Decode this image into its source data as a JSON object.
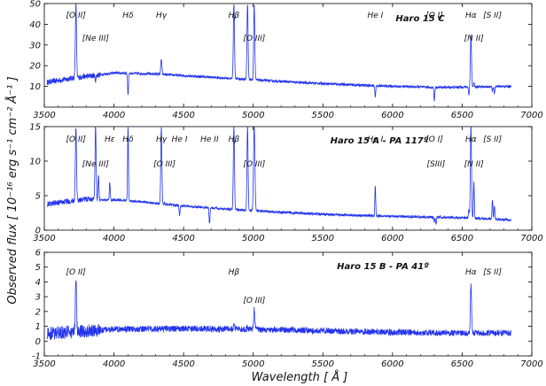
{
  "chart_data": {
    "type": "line",
    "xlabel": "Wavelength [ Å ]",
    "ylabel": "Observed flux [ 10⁻¹⁶ erg s⁻¹ cm⁻² Å⁻¹ ]",
    "xlim": [
      3500,
      7000
    ],
    "x_ticks": [
      3500,
      4000,
      4500,
      5000,
      5500,
      6000,
      6500,
      7000
    ],
    "series_color": "#2233ee",
    "panels": [
      {
        "title": "Haro 15 C",
        "ylim": [
          0,
          50
        ],
        "y_ticks": [
          10,
          20,
          30,
          40,
          50
        ],
        "continuum": [
          [
            3520,
            12
          ],
          [
            3700,
            14
          ],
          [
            4000,
            16.5
          ],
          [
            4300,
            16
          ],
          [
            4800,
            14
          ],
          [
            5300,
            12
          ],
          [
            5800,
            10.5
          ],
          [
            6300,
            9.5
          ],
          [
            6850,
            10
          ]
        ],
        "lines": [
          {
            "x": 3727,
            "peak": 50,
            "w": 4
          },
          {
            "x": 3868,
            "peak": 13,
            "w": 4
          },
          {
            "x": 4101,
            "peak": 6,
            "w": 3
          },
          {
            "x": 4340,
            "peak": 23,
            "w": 4
          },
          {
            "x": 4861,
            "peak": 50,
            "w": 4
          },
          {
            "x": 4959,
            "peak": 50,
            "w": 4
          },
          {
            "x": 5007,
            "peak": 50,
            "w": 4
          },
          {
            "x": 5876,
            "peak": 5,
            "w": 3
          },
          {
            "x": 6300,
            "peak": 3,
            "w": 3
          },
          {
            "x": 6548,
            "peak": 6,
            "w": 3
          },
          {
            "x": 6563,
            "peak": 35,
            "w": 4
          },
          {
            "x": 6584,
            "peak": 12,
            "w": 3
          },
          {
            "x": 6717,
            "peak": 8,
            "w": 3
          },
          {
            "x": 6731,
            "peak": 6,
            "w": 3
          }
        ],
        "labels": [
          {
            "text": "[O II]",
            "x": 3727
          },
          {
            "text": "[Ne III]",
            "x": 3868
          },
          {
            "text": "Hδ",
            "x": 4101
          },
          {
            "text": "Hγ",
            "x": 4340
          },
          {
            "text": "Hβ",
            "x": 4861
          },
          {
            "text": "[O III]",
            "x": 5007
          },
          {
            "text": "He I",
            "x": 5876
          },
          {
            "text": "[O I]",
            "x": 6300
          },
          {
            "text": "Hα",
            "x": 6563
          },
          {
            "text": "[N II]",
            "x": 6584
          },
          {
            "text": "[S II]",
            "x": 6717
          }
        ]
      },
      {
        "title": "Haro 15 A - PA 117º",
        "ylim": [
          0,
          15
        ],
        "y_ticks": [
          0,
          5,
          10,
          15
        ],
        "continuum": [
          [
            3520,
            3.8
          ],
          [
            3800,
            4.5
          ],
          [
            4100,
            4.3
          ],
          [
            4500,
            3.5
          ],
          [
            5000,
            2.8
          ],
          [
            5500,
            2.3
          ],
          [
            6000,
            2.0
          ],
          [
            6500,
            1.8
          ],
          [
            6850,
            1.5
          ]
        ],
        "lines": [
          {
            "x": 3727,
            "peak": 15,
            "w": 4
          },
          {
            "x": 3868,
            "peak": 15,
            "w": 4
          },
          {
            "x": 3889,
            "peak": 8,
            "w": 3
          },
          {
            "x": 3970,
            "peak": 7,
            "w": 3
          },
          {
            "x": 4101,
            "peak": 15,
            "w": 3
          },
          {
            "x": 4340,
            "peak": 15,
            "w": 4
          },
          {
            "x": 4363,
            "peak": 4,
            "w": 3
          },
          {
            "x": 4471,
            "peak": 2,
            "w": 3
          },
          {
            "x": 4686,
            "peak": 0.8,
            "w": 3
          },
          {
            "x": 4861,
            "peak": 15,
            "w": 4
          },
          {
            "x": 4959,
            "peak": 15,
            "w": 4
          },
          {
            "x": 5007,
            "peak": 15,
            "w": 5
          },
          {
            "x": 5876,
            "peak": 6.5,
            "w": 3
          },
          {
            "x": 6300,
            "peak": 1.2,
            "w": 3
          },
          {
            "x": 6312,
            "peak": 0.8,
            "w": 3
          },
          {
            "x": 6548,
            "peak": 3,
            "w": 3
          },
          {
            "x": 6563,
            "peak": 15,
            "w": 4
          },
          {
            "x": 6584,
            "peak": 7,
            "w": 3
          },
          {
            "x": 6717,
            "peak": 4.5,
            "w": 3
          },
          {
            "x": 6731,
            "peak": 3.5,
            "w": 3
          }
        ],
        "labels": [
          {
            "text": "[O II]",
            "x": 3727
          },
          {
            "text": "[Ne III]",
            "x": 3868
          },
          {
            "text": "Hε",
            "x": 3970
          },
          {
            "text": "Hδ",
            "x": 4101
          },
          {
            "text": "Hγ",
            "x": 4340
          },
          {
            "text": "[O III]",
            "x": 4363
          },
          {
            "text": "He I",
            "x": 4471
          },
          {
            "text": "He II",
            "x": 4686
          },
          {
            "text": "Hβ",
            "x": 4861
          },
          {
            "text": "[O III]",
            "x": 5007
          },
          {
            "text": "He I",
            "x": 5876
          },
          {
            "text": "[O I]",
            "x": 6300
          },
          {
            "text": "[SIII]",
            "x": 6312
          },
          {
            "text": "Hα",
            "x": 6563
          },
          {
            "text": "[N II]",
            "x": 6584
          },
          {
            "text": "[S II]",
            "x": 6717
          }
        ]
      },
      {
        "title": "Haro 15 B - PA 41º",
        "ylim": [
          -1,
          6
        ],
        "y_ticks": [
          -1,
          0,
          1,
          2,
          3,
          4,
          5,
          6
        ],
        "continuum": [
          [
            3520,
            0.5
          ],
          [
            4000,
            0.8
          ],
          [
            4500,
            0.85
          ],
          [
            5000,
            0.8
          ],
          [
            5500,
            0.7
          ],
          [
            6000,
            0.6
          ],
          [
            6500,
            0.55
          ],
          [
            6850,
            0.55
          ]
        ],
        "lines": [
          {
            "x": 3727,
            "peak": 4.2,
            "w": 4
          },
          {
            "x": 4861,
            "peak": 1.2,
            "w": 3
          },
          {
            "x": 4959,
            "peak": 1.0,
            "w": 3
          },
          {
            "x": 5007,
            "peak": 2.2,
            "w": 4
          },
          {
            "x": 6563,
            "peak": 3.8,
            "w": 4
          },
          {
            "x": 6717,
            "peak": 0.6,
            "w": 3
          }
        ],
        "labels": [
          {
            "text": "[O II]",
            "x": 3727
          },
          {
            "text": "Hβ",
            "x": 4861
          },
          {
            "text": "[O III]",
            "x": 5007
          },
          {
            "text": "Hα",
            "x": 6563
          },
          {
            "text": "[S II]",
            "x": 6717
          }
        ]
      }
    ]
  }
}
